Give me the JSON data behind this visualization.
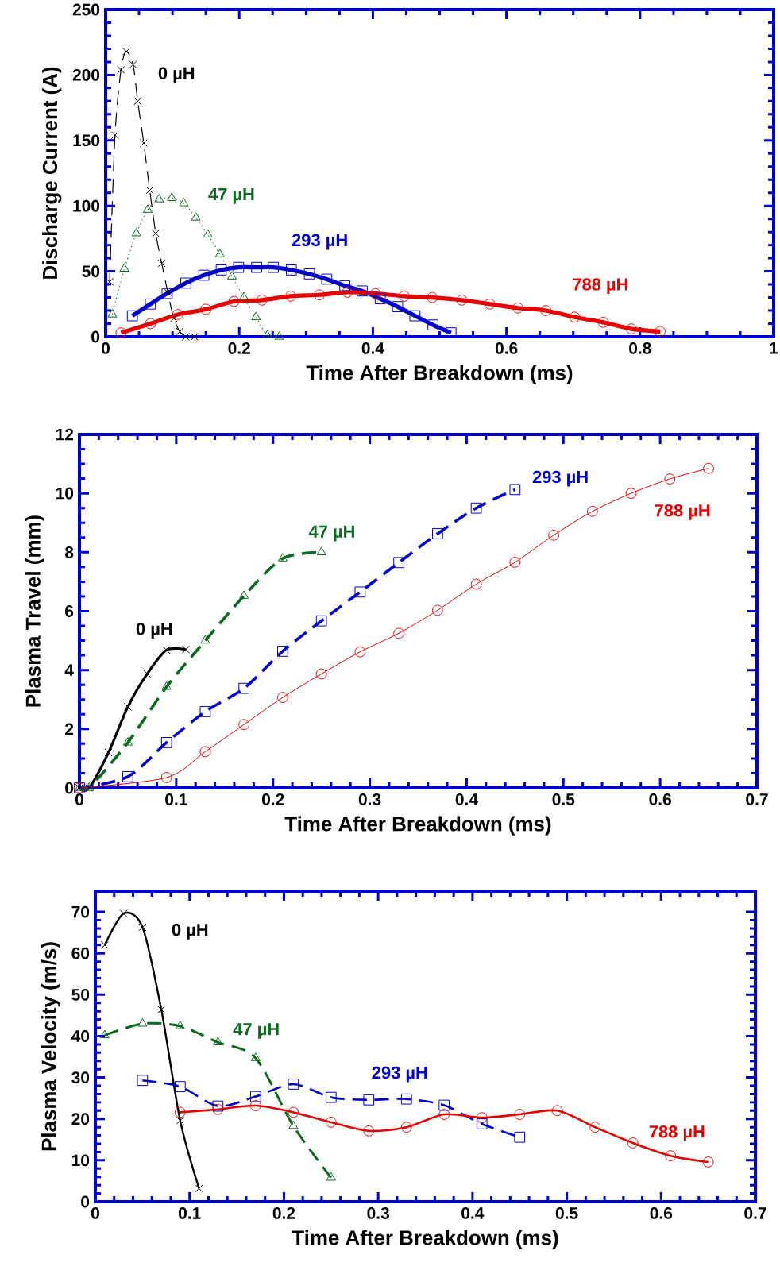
{
  "chart_data": [
    {
      "type": "line",
      "xlabel": "Time After Breakdown (ms)",
      "ylabel": "Discharge Current (A)",
      "xlim": [
        0,
        1
      ],
      "ylim": [
        0,
        250
      ],
      "xticks": [
        0,
        0.2,
        0.4,
        0.6,
        0.8,
        1
      ],
      "yticks": [
        0,
        50,
        100,
        150,
        200,
        250
      ],
      "series": [
        {
          "name": "0 µH",
          "color": "#000000",
          "marker": "cross",
          "line_style": "dashed",
          "x": [
            0.006,
            0.014,
            0.023,
            0.031,
            0.041,
            0.048,
            0.057,
            0.066,
            0.075,
            0.084,
            0.093,
            0.102,
            0.111,
            0.12,
            0.133
          ],
          "values": [
            42,
            154,
            204,
            218,
            208,
            180,
            148,
            112,
            79,
            56,
            34,
            14,
            4,
            0,
            0
          ]
        },
        {
          "name": "47 µH",
          "color": "#0a6b1e",
          "marker": "triangle",
          "line_style": "dotted",
          "x": [
            0.01,
            0.028,
            0.046,
            0.063,
            0.08,
            0.099,
            0.117,
            0.135,
            0.153,
            0.171,
            0.189,
            0.207,
            0.225,
            0.242,
            0.26
          ],
          "values": [
            17,
            52,
            79,
            97,
            105,
            106,
            102,
            91,
            78,
            63,
            46,
            30,
            15,
            1,
            0
          ]
        },
        {
          "name": "293 µH",
          "color": "#0000cc",
          "marker": "square",
          "line_style": "solid",
          "x": [
            0.04,
            0.067,
            0.092,
            0.12,
            0.147,
            0.173,
            0.199,
            0.226,
            0.251,
            0.278,
            0.305,
            0.331,
            0.358,
            0.384,
            0.411,
            0.437,
            0.463,
            0.49,
            0.517
          ],
          "values": [
            16,
            25,
            33,
            41,
            47,
            51,
            53,
            53,
            53,
            51,
            48,
            44,
            39,
            35,
            29,
            23,
            16,
            9,
            3
          ]
        },
        {
          "name": "788 µH",
          "color": "#e60000",
          "marker": "circle",
          "line_style": "solid",
          "x": [
            0.023,
            0.067,
            0.108,
            0.15,
            0.192,
            0.234,
            0.277,
            0.32,
            0.362,
            0.404,
            0.447,
            0.489,
            0.533,
            0.575,
            0.617,
            0.659,
            0.702,
            0.745,
            0.787,
            0.83
          ],
          "values": [
            3,
            10,
            17,
            21,
            27,
            28,
            31,
            32,
            34,
            33,
            31,
            30,
            28,
            25,
            22,
            20,
            15,
            11,
            6,
            4
          ]
        }
      ]
    },
    {
      "type": "line",
      "xlabel": "Time After Breakdown (ms)",
      "ylabel": "Plasma Travel (mm)",
      "xlim": [
        0,
        0.7
      ],
      "ylim": [
        0,
        12
      ],
      "xticks": [
        0,
        0.1,
        0.2,
        0.3,
        0.4,
        0.5,
        0.6,
        0.7
      ],
      "yticks": [
        0,
        2,
        4,
        6,
        8,
        10,
        12
      ],
      "series": [
        {
          "name": "0 µH",
          "color": "#000000",
          "marker": "cross",
          "line_style": "solid",
          "x": [
            0,
            0.01,
            0.03,
            0.05,
            0.07,
            0.09,
            0.11
          ],
          "values": [
            0,
            0,
            1.2,
            2.75,
            3.87,
            4.68,
            4.7
          ]
        },
        {
          "name": "47 µH",
          "color": "#0a6b1e",
          "marker": "triangle",
          "line_style": "dashed",
          "x": [
            0,
            0.01,
            0.05,
            0.09,
            0.13,
            0.17,
            0.21,
            0.25
          ],
          "values": [
            0,
            0,
            1.54,
            3.43,
            5.0,
            6.52,
            7.79,
            8.0
          ]
        },
        {
          "name": "293 µH",
          "color": "#0000cc",
          "marker": "square",
          "line_style": "dashed",
          "x": [
            0,
            0.05,
            0.09,
            0.13,
            0.17,
            0.21,
            0.25,
            0.29,
            0.33,
            0.37,
            0.41,
            0.45
          ],
          "values": [
            0,
            0.38,
            1.54,
            2.59,
            3.38,
            4.64,
            5.67,
            6.65,
            7.65,
            8.63,
            9.5,
            10.13
          ]
        },
        {
          "name": "788 µH",
          "color": "#e60000",
          "marker": "circle",
          "line_style": "solid",
          "x": [
            0,
            0.09,
            0.13,
            0.17,
            0.21,
            0.25,
            0.29,
            0.33,
            0.37,
            0.41,
            0.45,
            0.49,
            0.53,
            0.57,
            0.61,
            0.65
          ],
          "values": [
            0,
            0.35,
            1.23,
            2.15,
            3.07,
            3.87,
            4.62,
            5.25,
            6.03,
            6.92,
            7.66,
            8.58,
            9.39,
            10.0,
            10.49,
            10.85
          ]
        }
      ]
    },
    {
      "type": "line",
      "xlabel": "Time After Breakdown (ms)",
      "ylabel": "Plasma Velocity (m/s)",
      "xlim": [
        0,
        0.7
      ],
      "ylim": [
        0,
        75
      ],
      "xticks": [
        0,
        0.1,
        0.2,
        0.3,
        0.4,
        0.5,
        0.6,
        0.7
      ],
      "yticks": [
        0,
        10,
        20,
        30,
        40,
        50,
        60,
        70
      ],
      "series": [
        {
          "name": "0 µH",
          "color": "#000000",
          "marker": "cross",
          "line_style": "solid",
          "x": [
            0.01,
            0.03,
            0.05,
            0.07,
            0.09,
            0.11
          ],
          "values": [
            62,
            69.6,
            66.3,
            46.4,
            19.6,
            3.2
          ]
        },
        {
          "name": "47 µH",
          "color": "#0a6b1e",
          "marker": "triangle",
          "line_style": "dashed",
          "x": [
            0.01,
            0.05,
            0.09,
            0.13,
            0.17,
            0.21,
            0.25
          ],
          "values": [
            40.2,
            43.0,
            42.4,
            38.5,
            34.7,
            18.3,
            5.8
          ]
        },
        {
          "name": "293 µH",
          "color": "#0000cc",
          "marker": "square",
          "line_style": "dashed",
          "x": [
            0.05,
            0.09,
            0.13,
            0.17,
            0.21,
            0.25,
            0.29,
            0.33,
            0.37,
            0.41,
            0.45
          ],
          "values": [
            29.3,
            27.8,
            23.1,
            25.4,
            28.4,
            25.2,
            24.6,
            24.8,
            23.3,
            18.8,
            15.6
          ]
        },
        {
          "name": "788 µH",
          "color": "#e60000",
          "marker": "circle",
          "line_style": "solid",
          "x": [
            0.09,
            0.13,
            0.17,
            0.21,
            0.25,
            0.29,
            0.33,
            0.37,
            0.41,
            0.45,
            0.49,
            0.53,
            0.57,
            0.61,
            0.65
          ],
          "values": [
            21.6,
            22.3,
            23.2,
            21.6,
            19.2,
            17.1,
            18.0,
            21.1,
            20.3,
            21.1,
            22.0,
            18.0,
            14.2,
            11.1,
            9.6
          ]
        }
      ]
    }
  ]
}
